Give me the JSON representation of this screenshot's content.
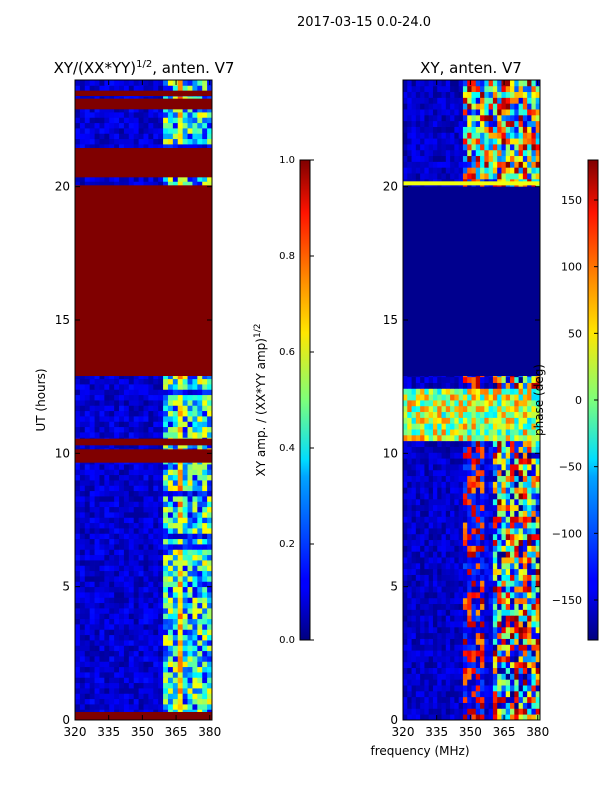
{
  "suptitle": "2017-03-15 0.0-24.0",
  "colors": {
    "jet_dark_red": "#800000",
    "jet_dark_blue": "#00007f",
    "jet_blue": "#0000ff",
    "jet_cyan": "#00ffff",
    "jet_yellow": "#ffff00",
    "jet_red": "#ff0000",
    "frame": "#000000"
  },
  "chart_data": [
    {
      "type": "heatmap",
      "name": "normalized-amplitude",
      "title_main": "XY/(XX*YY)",
      "title_exp": "1/2",
      "title_suffix": ", anten. V7",
      "ylabel": "UT (hours)",
      "xlim": [
        320,
        381
      ],
      "ylim": [
        0,
        24
      ],
      "xticks": [
        320,
        335,
        350,
        365,
        380
      ],
      "yticks": [
        0,
        5,
        10,
        15,
        20
      ],
      "colormap": "jet",
      "bands": [
        {
          "y0": 0.0,
          "y1": 0.3,
          "value": 1.0
        },
        {
          "y0": 9.65,
          "y1": 10.15,
          "value": 1.0
        },
        {
          "y0": 10.3,
          "y1": 10.55,
          "value": 1.0
        },
        {
          "y0": 12.9,
          "y1": 20.05,
          "value": 1.0
        },
        {
          "y0": 20.35,
          "y1": 21.45,
          "value": 1.0
        },
        {
          "y0": 22.9,
          "y1": 23.3,
          "value": 1.0
        },
        {
          "y0": 23.4,
          "y1": 23.6,
          "value": 1.0
        }
      ],
      "colorbar": {
        "label_main": "XY amp. / (XX*YY amp)",
        "label_exp": "1/2",
        "range": [
          0.0,
          1.0
        ],
        "ticks": [
          "0.0",
          "0.2",
          "0.4",
          "0.6",
          "0.8",
          "1.0"
        ]
      }
    },
    {
      "type": "heatmap",
      "name": "xy-phase",
      "title": "XY, anten. V7",
      "xlabel": "frequency (MHz)",
      "xlim": [
        320,
        381
      ],
      "ylim": [
        0,
        24
      ],
      "xticks": [
        320,
        335,
        350,
        365,
        380
      ],
      "yticks": [
        0,
        5,
        10,
        15,
        20
      ],
      "colormap": "jet",
      "bands": [
        {
          "y0": 12.9,
          "y1": 20.0,
          "value": -175
        },
        {
          "y0": 20.05,
          "y1": 20.2,
          "value": 40
        }
      ],
      "colorbar": {
        "label": "phase (deg)",
        "range": [
          -180,
          180
        ],
        "ticks": [
          "−150",
          "−100",
          "−50",
          "0",
          "50",
          "100",
          "150"
        ]
      }
    }
  ]
}
